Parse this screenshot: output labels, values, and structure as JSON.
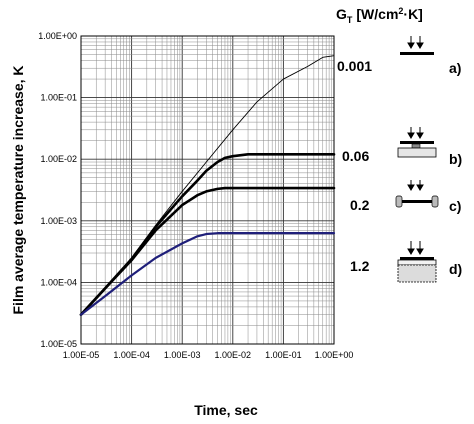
{
  "chart_data": {
    "type": "line",
    "xlabel": "Time, sec",
    "ylabel": "Film average temperature increase, K",
    "x_scale": "log",
    "y_scale": "log",
    "xlim": [
      1e-05,
      1
    ],
    "ylim": [
      1e-05,
      1
    ],
    "grid": true,
    "x_ticks": [
      "1.00E-05",
      "1.00E-04",
      "1.00E-03",
      "1.00E-02",
      "1.00E-01",
      "1.00E+00"
    ],
    "y_ticks": [
      "1.00E+00",
      "1.00E-01",
      "1.00E-02",
      "1.00E-03",
      "1.00E-04",
      "1.00E-05"
    ],
    "legend_title_main": "G",
    "legend_title_sub": "T",
    "legend_title_unit": "[W/cm",
    "legend_title_exp": "2",
    "legend_title_tail": "·K]",
    "series": [
      {
        "name": "0.001",
        "inset": "a)",
        "color": "#000000",
        "x": [
          1e-05,
          3e-05,
          0.0001,
          0.0003,
          0.001,
          0.003,
          0.01,
          0.03,
          0.1,
          0.3,
          0.6,
          1
        ],
        "y": [
          3e-05,
          8e-05,
          0.00025,
          0.00085,
          0.003,
          0.009,
          0.03,
          0.085,
          0.2,
          0.32,
          0.45,
          0.48
        ]
      },
      {
        "name": "0.06",
        "inset": "b)",
        "color": "#000000",
        "x": [
          1e-05,
          3e-05,
          0.0001,
          0.0003,
          0.001,
          0.002,
          0.003,
          0.005,
          0.007,
          0.01,
          0.02,
          1
        ],
        "y": [
          3e-05,
          8e-05,
          0.00024,
          0.0008,
          0.0025,
          0.0045,
          0.0065,
          0.009,
          0.0105,
          0.0112,
          0.012,
          0.012
        ]
      },
      {
        "name": "0.2",
        "inset": "c)",
        "color": "#000000",
        "x": [
          1e-05,
          3e-05,
          0.0001,
          0.0003,
          0.001,
          0.002,
          0.003,
          0.005,
          0.007,
          1
        ],
        "y": [
          3e-05,
          8e-05,
          0.00023,
          0.0007,
          0.0018,
          0.0026,
          0.003,
          0.0033,
          0.0034,
          0.0034
        ]
      },
      {
        "name": "1.2",
        "inset": "d)",
        "color": "#1f1f7a",
        "x": [
          1e-05,
          3e-05,
          0.0001,
          0.0003,
          0.001,
          0.002,
          0.003,
          0.005,
          1
        ],
        "y": [
          3e-05,
          6e-05,
          0.00013,
          0.00025,
          0.00043,
          0.00056,
          0.00061,
          0.00063,
          0.00063
        ]
      }
    ]
  }
}
